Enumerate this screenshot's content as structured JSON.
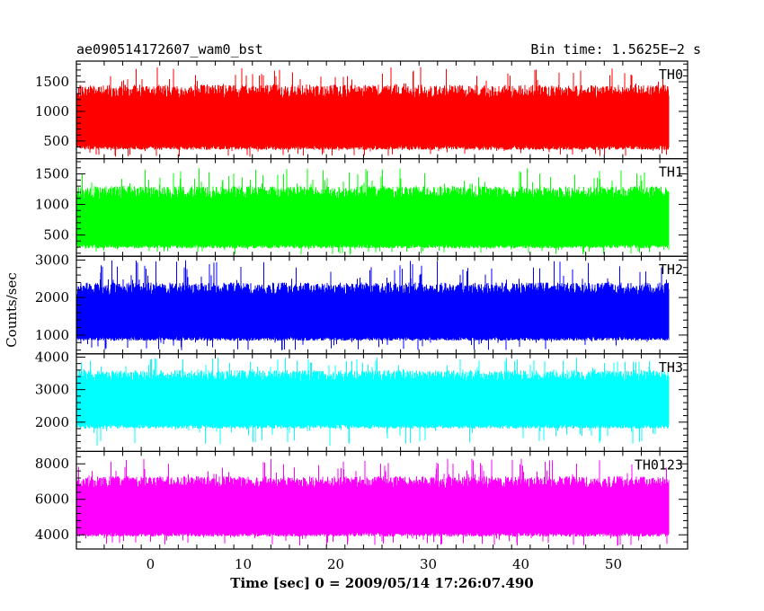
{
  "header": {
    "left_title": "ae090514172607_wam0_bst",
    "right_title": "Bin time: 1.5625E−2 s"
  },
  "chart_data": {
    "type": "line",
    "title": "ae090514172607_wam0_bst",
    "subtitle": "Bin time: 1.5625E−2 s",
    "xlabel": "Time [sec] 0 = 2009/05/14 17:26:07.490",
    "ylabel": "Counts/sec",
    "xlim": [
      -8,
      58
    ],
    "x_data_range": [
      -7.9,
      56.0
    ],
    "x_ticks": [
      0,
      10,
      20,
      30,
      40,
      50
    ],
    "bin_time_s": 0.015625,
    "grid": false,
    "panels": [
      {
        "name": "TH0",
        "color": "#ff0000",
        "ylim": [
          200,
          1850
        ],
        "y_ticks": [
          500,
          1000,
          1500
        ],
        "mean": 820,
        "low": 350,
        "high": 1450,
        "peak": 1750
      },
      {
        "name": "TH1",
        "color": "#00ff00",
        "ylim": [
          150,
          1750
        ],
        "y_ticks": [
          500,
          1000,
          1500
        ],
        "mean": 700,
        "low": 280,
        "high": 1300,
        "peak": 1600
      },
      {
        "name": "TH2",
        "color": "#0000ff",
        "ylim": [
          500,
          3100
        ],
        "y_ticks": [
          1000,
          2000,
          3000
        ],
        "mean": 1500,
        "low": 850,
        "high": 2400,
        "peak": 3000
      },
      {
        "name": "TH3",
        "color": "#00ffff",
        "ylim": [
          1100,
          4100
        ],
        "y_ticks": [
          2000,
          3000,
          4000
        ],
        "mean": 2650,
        "low": 1800,
        "high": 3600,
        "peak": 4000
      },
      {
        "name": "TH0123",
        "color": "#ff00ff",
        "ylim": [
          3200,
          8700
        ],
        "y_ticks": [
          4000,
          6000,
          8000
        ],
        "mean": 5400,
        "low": 3900,
        "high": 7300,
        "peak": 8300
      }
    ]
  }
}
